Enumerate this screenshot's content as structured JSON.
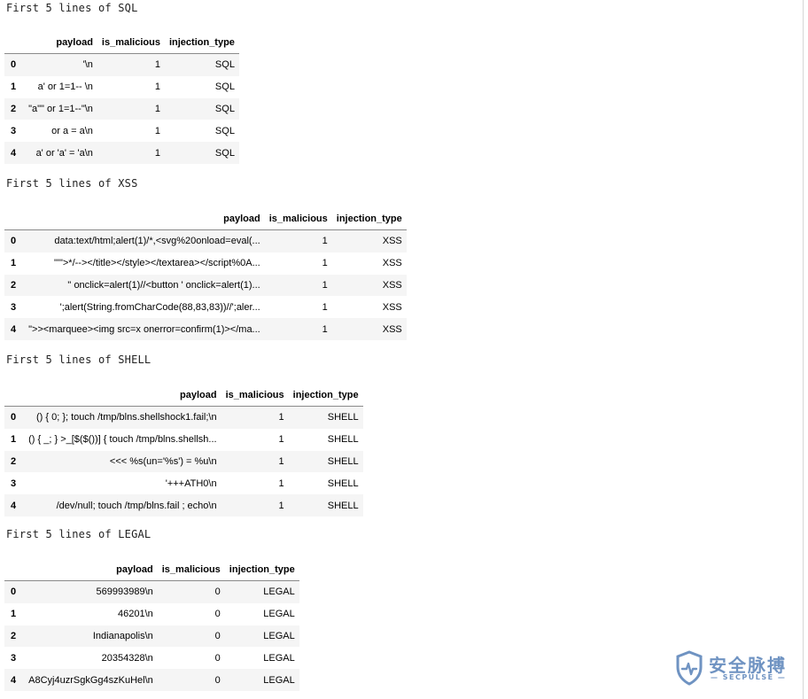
{
  "columns": [
    "payload",
    "is_malicious",
    "injection_type"
  ],
  "sections": [
    {
      "caption": "First 5 lines of SQL",
      "rows": [
        {
          "index": "0",
          "payload": "'\\n",
          "is_malicious": "1",
          "injection_type": "SQL"
        },
        {
          "index": "1",
          "payload": "a' or 1=1-- \\n",
          "is_malicious": "1",
          "injection_type": "SQL"
        },
        {
          "index": "2",
          "payload": "\"a\"\" or 1=1--\"\\n",
          "is_malicious": "1",
          "injection_type": "SQL"
        },
        {
          "index": "3",
          "payload": "or a = a\\n",
          "is_malicious": "1",
          "injection_type": "SQL"
        },
        {
          "index": "4",
          "payload": "a' or 'a' = 'a\\n",
          "is_malicious": "1",
          "injection_type": "SQL"
        }
      ]
    },
    {
      "caption": "First 5 lines of XSS",
      "rows": [
        {
          "index": "0",
          "payload": "data:text/html;alert(1)/*,<svg%20onload=eval(...",
          "is_malicious": "1",
          "injection_type": "XSS"
        },
        {
          "index": "1",
          "payload": "\"'\">*/--></title></style></textarea></script%0A...",
          "is_malicious": "1",
          "injection_type": "XSS"
        },
        {
          "index": "2",
          "payload": "'' onclick=alert(1)//<button ' onclick=alert(1)...",
          "is_malicious": "1",
          "injection_type": "XSS"
        },
        {
          "index": "3",
          "payload": "';alert(String.fromCharCode(88,83,83))//';aler...",
          "is_malicious": "1",
          "injection_type": "XSS"
        },
        {
          "index": "4",
          "payload": "\">><marquee><img src=x onerror=confirm(1)></ma...",
          "is_malicious": "1",
          "injection_type": "XSS"
        }
      ]
    },
    {
      "caption": "First 5 lines of SHELL",
      "rows": [
        {
          "index": "0",
          "payload": "() { 0; }; touch /tmp/blns.shellshock1.fail;\\n",
          "is_malicious": "1",
          "injection_type": "SHELL"
        },
        {
          "index": "1",
          "payload": "() { _; } >_[$($())] { touch /tmp/blns.shellsh...",
          "is_malicious": "1",
          "injection_type": "SHELL"
        },
        {
          "index": "2",
          "payload": "<<< %s(un='%s') = %u\\n",
          "is_malicious": "1",
          "injection_type": "SHELL"
        },
        {
          "index": "3",
          "payload": "'+++ATH0\\n",
          "is_malicious": "1",
          "injection_type": "SHELL"
        },
        {
          "index": "4",
          "payload": "/dev/null; touch /tmp/blns.fail ; echo\\n",
          "is_malicious": "1",
          "injection_type": "SHELL"
        }
      ]
    },
    {
      "caption": "First 5 lines of LEGAL",
      "rows": [
        {
          "index": "0",
          "payload": "569993989\\n",
          "is_malicious": "0",
          "injection_type": "LEGAL"
        },
        {
          "index": "1",
          "payload": "46201\\n",
          "is_malicious": "0",
          "injection_type": "LEGAL"
        },
        {
          "index": "2",
          "payload": "Indianapolis\\n",
          "is_malicious": "0",
          "injection_type": "LEGAL"
        },
        {
          "index": "3",
          "payload": "20354328\\n",
          "is_malicious": "0",
          "injection_type": "LEGAL"
        },
        {
          "index": "4",
          "payload": "A8Cyj4uzrSgkGg4szKuHel\\n",
          "is_malicious": "0",
          "injection_type": "LEGAL"
        }
      ]
    }
  ],
  "watermark": {
    "text": "安全脉搏",
    "subtext": "— SECPULSE —",
    "color": "#6f93c2"
  }
}
